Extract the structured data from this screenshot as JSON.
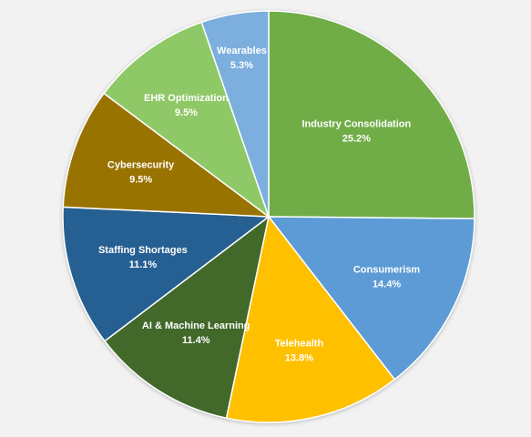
{
  "chart_data": {
    "type": "pie",
    "title": "",
    "start_angle_deg": 0,
    "direction": "clockwise",
    "slices": [
      {
        "label": "Industry Consolidation",
        "value": 25.2,
        "value_label": "25.2%",
        "color": "#70ad47"
      },
      {
        "label": "Consumerism",
        "value": 14.4,
        "value_label": "14.4%",
        "color": "#5b9bd5"
      },
      {
        "label": "Telehealth",
        "value": 13.8,
        "value_label": "13.8%",
        "color": "#ffc000"
      },
      {
        "label": "AI & Machine Learning",
        "value": 11.4,
        "value_label": "11.4%",
        "color": "#43682b"
      },
      {
        "label": "Staffing Shortages",
        "value": 11.1,
        "value_label": "11.1%",
        "color": "#255e91"
      },
      {
        "label": "Cybersecurity",
        "value": 9.5,
        "value_label": "9.5%",
        "color": "#997300"
      },
      {
        "label": "EHR Optimization",
        "value": 9.5,
        "value_label": "9.5%",
        "color": "#8fc866"
      },
      {
        "label": "Wearables",
        "value": 5.3,
        "value_label": "5.3%",
        "color": "#7cafdd"
      }
    ],
    "legend": "none",
    "data_labels": "inside"
  }
}
